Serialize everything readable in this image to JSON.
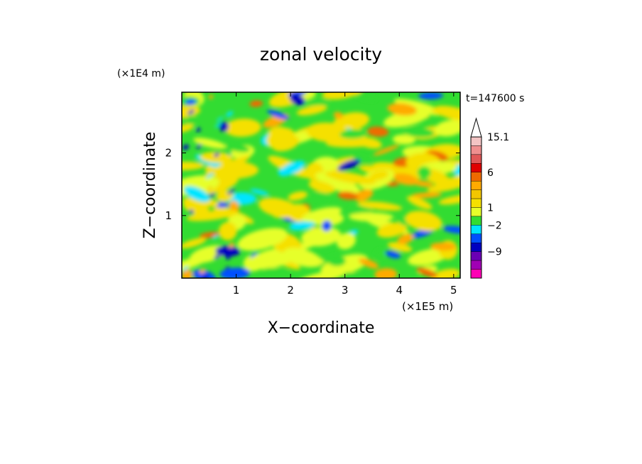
{
  "chart_data": {
    "type": "heatmap",
    "title": "zonal velocity",
    "xlabel": "X−coordinate",
    "ylabel": "Z−coordinate",
    "x_unit": "(×1E5 m)",
    "y_unit": "(×1E4 m)",
    "time_label": "t=147600 s",
    "xlim": [
      0,
      5.12
    ],
    "ylim": [
      0,
      2.97
    ],
    "x_ticks": [
      1,
      2,
      3,
      4,
      5
    ],
    "y_ticks": [
      1,
      2
    ],
    "colorbar": {
      "levels": [
        {
          "color": "#f3c4c4"
        },
        {
          "color": "#ef8f8f"
        },
        {
          "color": "#e05757"
        },
        {
          "color": "#e00000"
        },
        {
          "color": "#ef6a00"
        },
        {
          "color": "#ffaa00"
        },
        {
          "color": "#f2c600"
        },
        {
          "color": "#f5e000"
        },
        {
          "color": "#e6ff2a"
        },
        {
          "color": "#32dc32"
        },
        {
          "color": "#00e5ff"
        },
        {
          "color": "#0050ff"
        },
        {
          "color": "#0000c0"
        },
        {
          "color": "#6a00b4"
        },
        {
          "color": "#a000b4"
        },
        {
          "color": "#ff00b4"
        }
      ],
      "tick_labels": [
        {
          "label": "15.1",
          "level_index": 0
        },
        {
          "label": "6",
          "level_index": 4
        },
        {
          "label": "1",
          "level_index": 8
        },
        {
          "label": "−2",
          "level_index": 10
        },
        {
          "label": "−9",
          "level_index": 13
        }
      ]
    }
  }
}
